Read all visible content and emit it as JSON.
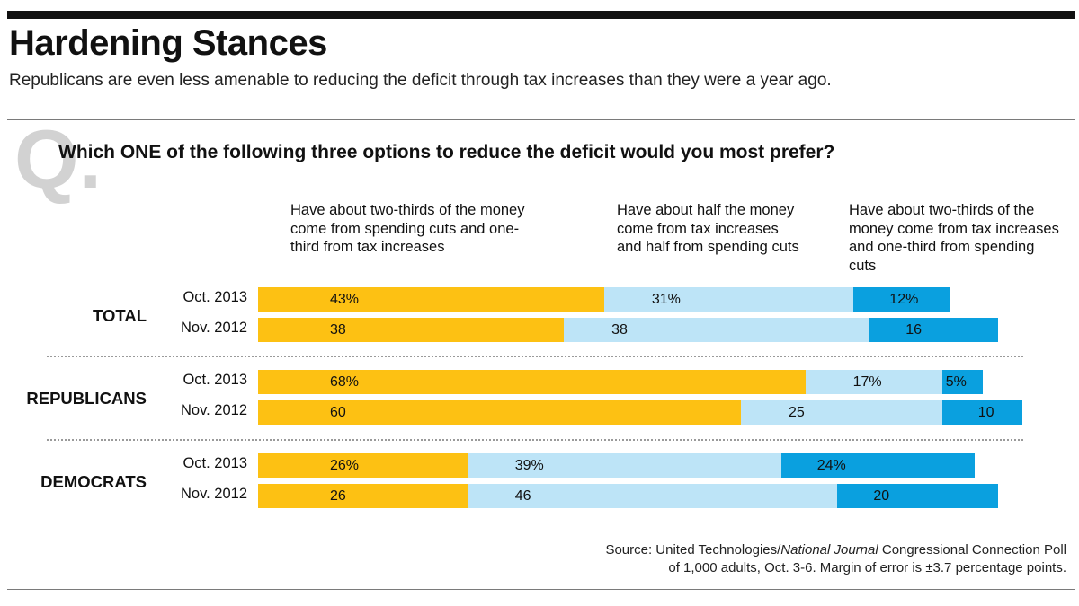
{
  "header": {
    "title": "Hardening Stances",
    "subtitle": "Republicans are even less amenable to reducing the deficit through tax increases than they were a year ago."
  },
  "question": {
    "mark": "Q.",
    "text": "Which ONE of the following three options to reduce the deficit would you most prefer?"
  },
  "source": {
    "line1_prefix": "Source: United Technologies/",
    "line1_italic": "National Journal",
    "line1_suffix": " Congressional Connection Poll",
    "line2": "of 1,000 adults, Oct. 3-6. Margin of error is ±3.7 percentage points."
  },
  "colors": {
    "option1": "#FDC113",
    "option2": "#BDE4F7",
    "option3": "#0AA0DF"
  },
  "chart_data": {
    "type": "bar",
    "stacked": true,
    "orientation": "horizontal",
    "unit": "%",
    "options": [
      "Have about two-thirds of the money come from spending cuts and one-third from tax increases",
      "Have about half the money come from tax increases and half from spending cuts",
      "Have about two-thirds of the money come from tax increases and one-third from spending cuts"
    ],
    "groups": [
      {
        "name": "TOTAL",
        "rows": [
          {
            "label": "Oct. 2013",
            "values": [
              43,
              31,
              12
            ],
            "display": [
              "43%",
              "31%",
              "12%"
            ]
          },
          {
            "label": "Nov. 2012",
            "values": [
              38,
              38,
              16
            ],
            "display": [
              "38",
              "38",
              "16"
            ]
          }
        ]
      },
      {
        "name": "REPUBLICANS",
        "rows": [
          {
            "label": "Oct. 2013",
            "values": [
              68,
              17,
              5
            ],
            "display": [
              "68%",
              "17%",
              "5%"
            ]
          },
          {
            "label": "Nov. 2012",
            "values": [
              60,
              25,
              10
            ],
            "display": [
              "60",
              "25",
              "10"
            ]
          }
        ]
      },
      {
        "name": "DEMOCRATS",
        "rows": [
          {
            "label": "Oct. 2013",
            "values": [
              26,
              39,
              24
            ],
            "display": [
              "26%",
              "39%",
              "24%"
            ]
          },
          {
            "label": "Nov. 2012",
            "values": [
              26,
              46,
              20
            ],
            "display": [
              "26",
              "46",
              "20"
            ]
          }
        ]
      }
    ]
  }
}
